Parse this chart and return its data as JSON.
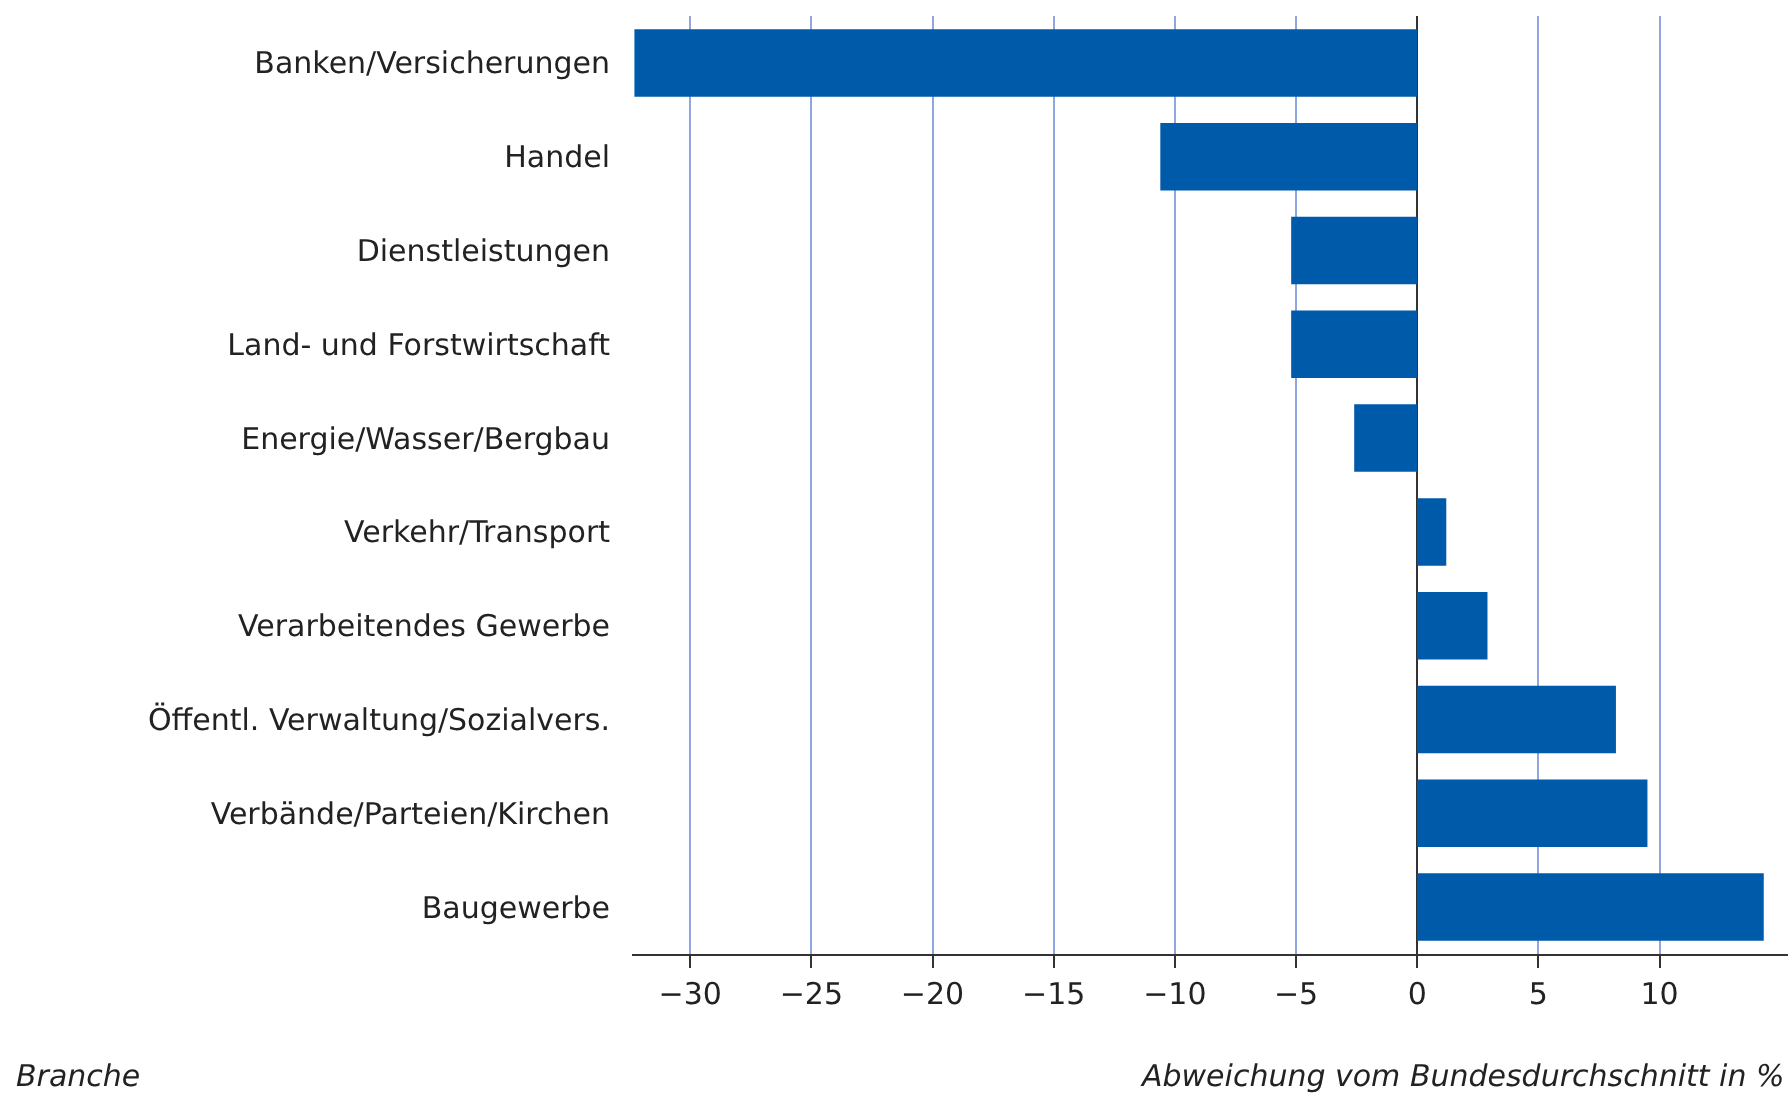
{
  "chart_data": {
    "type": "bar",
    "orientation": "horizontal",
    "categories": [
      "Banken/Versicherungen",
      "Handel",
      "Dienstleistungen",
      "Land- und Forstwirtschaft",
      "Energie/Wasser/Bergbau",
      "Verkehr/Transport",
      "Verarbeitendes Gewerbe",
      "Öffentl. Verwaltung/Sozialvers.",
      "Verbände/Parteien/Kirchen",
      "Baugewerbe"
    ],
    "values": [
      -32.3,
      -10.6,
      -5.2,
      -5.2,
      -2.6,
      1.2,
      2.9,
      8.2,
      9.5,
      14.3
    ],
    "color": "#005aaa",
    "xlim": [
      -32.4,
      15.3
    ],
    "xticks": [
      {
        "value": -30,
        "label": "−30"
      },
      {
        "value": -25,
        "label": "−25"
      },
      {
        "value": -20,
        "label": "−20"
      },
      {
        "value": -15,
        "label": "−15"
      },
      {
        "value": -10,
        "label": "−10"
      },
      {
        "value": -5,
        "label": "−5"
      },
      0,
      5,
      10
    ],
    "xlabel": "Abweichung vom Bundesdurchschnitt in %",
    "ylabel": "Branche",
    "grid": "x",
    "legend": false
  }
}
